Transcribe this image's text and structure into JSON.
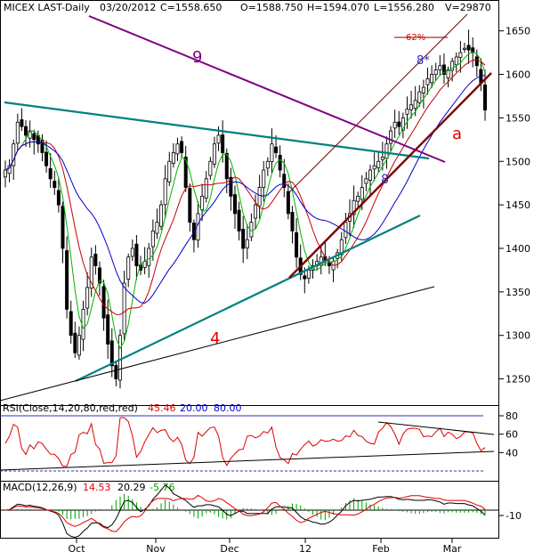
{
  "header": {
    "symbol": "MICEX LAST-Daily",
    "date": "03/20/2012",
    "close": "C=1558.650",
    "open": "O=1588.750",
    "high": "H=1594.070",
    "low": "L=1556.280",
    "volume": "V=29870"
  },
  "colors": {
    "price_up": "#000000",
    "price_down": "#000000",
    "ma_fast": "#00b400",
    "ma_mid": "#c80000",
    "ma_slow": "#0000c8",
    "trend_teal": "#008080",
    "trend_purple": "#800080",
    "trend_maroon": "#800000",
    "rsi_line": "#dd0000",
    "macd_line": "#000000",
    "macd_signal": "#dd0000",
    "macd_hist": "#00a000",
    "ref_line": "#3030c0",
    "annotation_red": "#e00000",
    "annotation_purple": "#800080",
    "annotation_blue": "#3030c0"
  },
  "annotations": {
    "wave_4": "4",
    "wave_9": "9",
    "wave_a": "a",
    "wave_8_low": "8",
    "wave_8_high": "8*",
    "fib_62": "62%"
  },
  "rsi": {
    "label": "RSI(Close,14,20,80,red,red)",
    "value": "45.46",
    "low_level": "20.00",
    "high_level": "80.00"
  },
  "macd": {
    "label": "MACD(12,26,9)",
    "macd": "14.53",
    "signal": "20.29",
    "hist": "-5.76"
  },
  "chart_data": [
    {
      "type": "candlestick",
      "title": "MICEX LAST-Daily",
      "x_ticks": [
        "Oct",
        "Nov",
        "Dec",
        "12",
        "Feb",
        "Mar"
      ],
      "y_ticks": [
        1250,
        1300,
        1350,
        1400,
        1450,
        1500,
        1550,
        1600,
        1650
      ],
      "ylim": [
        1225,
        1665
      ],
      "grid": false,
      "close_series_approx": [
        1490,
        1495,
        1520,
        1545,
        1540,
        1530,
        1535,
        1525,
        1520,
        1510,
        1495,
        1480,
        1470,
        1450,
        1400,
        1330,
        1300,
        1280,
        1300,
        1330,
        1355,
        1390,
        1380,
        1360,
        1320,
        1290,
        1265,
        1250,
        1300,
        1360,
        1390,
        1400,
        1380,
        1375,
        1385,
        1400,
        1420,
        1430,
        1450,
        1480,
        1500,
        1510,
        1520,
        1510,
        1470,
        1430,
        1410,
        1440,
        1460,
        1480,
        1500,
        1520,
        1530,
        1510,
        1480,
        1460,
        1440,
        1420,
        1400,
        1410,
        1430,
        1450,
        1470,
        1490,
        1500,
        1520,
        1510,
        1490,
        1470,
        1440,
        1420,
        1390,
        1370,
        1365,
        1375,
        1380,
        1385,
        1390,
        1385,
        1380,
        1385,
        1395,
        1410,
        1430,
        1440,
        1455,
        1460,
        1470,
        1480,
        1490,
        1495,
        1500,
        1505,
        1520,
        1535,
        1545,
        1540,
        1550,
        1560,
        1565,
        1570,
        1580,
        1585,
        1595,
        1600,
        1605,
        1610,
        1600,
        1605,
        1615,
        1620,
        1625,
        1630,
        1628,
        1625,
        1610,
        1590,
        1559
      ]
    },
    {
      "type": "line",
      "title": "RSI(Close,14,20,80,red,red)",
      "y_ticks": [
        40,
        60,
        80
      ],
      "levels": [
        20,
        80
      ],
      "last_value": 45.46
    },
    {
      "type": "line",
      "title": "MACD(12,26,9)",
      "y_ticks": [
        -10
      ],
      "last_values": {
        "macd": 14.53,
        "signal": 20.29,
        "hist": -5.76
      }
    }
  ]
}
